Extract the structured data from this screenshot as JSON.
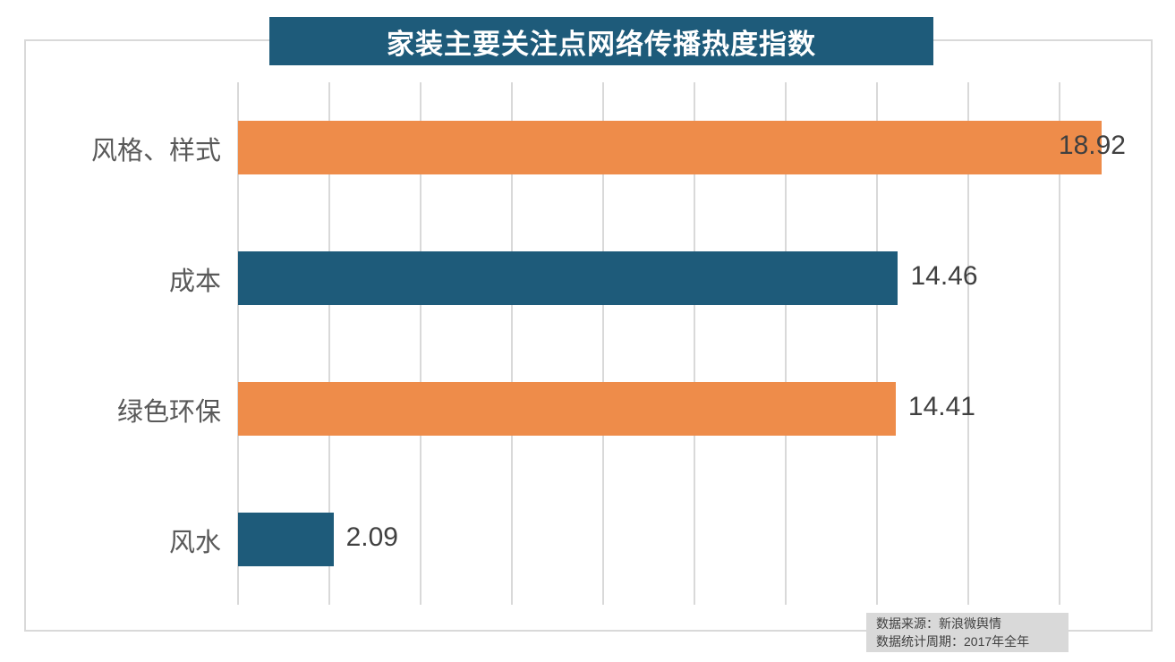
{
  "chart_data": {
    "type": "bar",
    "orientation": "horizontal",
    "title": "家装主要关注点网络传播热度指数",
    "categories": [
      "风格、样式",
      "成本",
      "绿色环保",
      "风水"
    ],
    "values": [
      18.92,
      14.46,
      14.41,
      2.09
    ],
    "data_labels": [
      "18.92",
      "14.46",
      "14.41",
      "2.09"
    ],
    "series": [
      {
        "name": "网络传播热度指数",
        "values": [
          18.92,
          14.46,
          14.41,
          2.09
        ]
      }
    ],
    "xlim": [
      0,
      20
    ],
    "grid_step": 2,
    "grid": true,
    "axis_tick_labels_visible": false,
    "legend_position": "none",
    "bar_colors": [
      "#ee8c4a",
      "#1e5b7a",
      "#ee8c4a",
      "#1e5b7a"
    ],
    "source_note": {
      "line1": "数据来源：新浪微舆情",
      "line2": "数据统计周期：2017年全年"
    }
  },
  "colors": {
    "title_banner_bg": "#1e5b7a",
    "title_text": "#ffffff",
    "bar_orange": "#ee8c4a",
    "bar_teal": "#1e5b7a",
    "gridline": "#d9d9d9",
    "frame_border": "#d9d9d9",
    "category_label_text": "#595959",
    "value_label_text": "#404040",
    "source_box_bg": "#d9d9d9",
    "source_text": "#404040"
  }
}
